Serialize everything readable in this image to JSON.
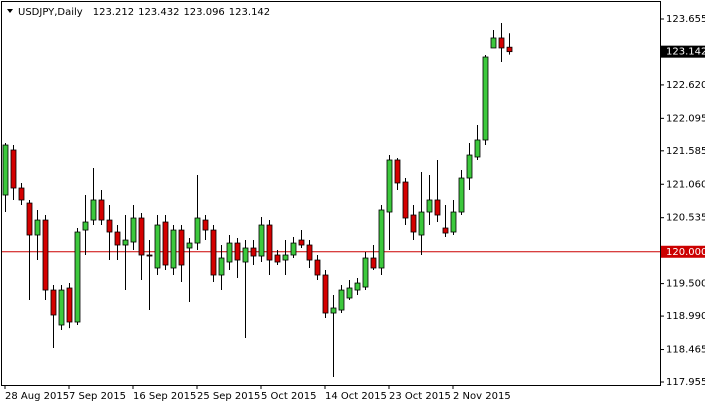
{
  "chart_data": {
    "type": "candlestick",
    "title": "USDJPY,Daily",
    "categories": [
      "28 Aug 2015",
      null,
      null,
      null,
      null,
      null,
      null,
      null,
      "7 Sep 2015",
      null,
      null,
      null,
      null,
      null,
      null,
      null,
      "16 Sep 2015",
      null,
      null,
      null,
      null,
      null,
      null,
      null,
      "25 Sep 2015",
      null,
      null,
      null,
      null,
      null,
      null,
      null,
      "5 Oct 2015",
      null,
      null,
      null,
      null,
      null,
      null,
      null,
      "14 Oct 2015",
      null,
      null,
      null,
      null,
      null,
      null,
      null,
      "23 Oct 2015",
      null,
      null,
      null,
      null,
      null,
      null,
      null,
      "2 Nov 2015",
      null,
      null,
      null,
      null,
      null,
      null,
      null
    ],
    "series": {
      "open": [
        120.891,
        121.598,
        121.001,
        120.765,
        120.263,
        120.498,
        119.399,
        118.85,
        119.431,
        118.897,
        120.341,
        120.498,
        120.813,
        120.498,
        120.31,
        120.106,
        120.153,
        120.53,
        119.949,
        119.745,
        120.467,
        119.745,
        120.341,
        120.059,
        120.137,
        120.498,
        120.341,
        119.635,
        119.839,
        120.137,
        119.839,
        120.059,
        119.933,
        120.42,
        119.949,
        119.87,
        119.949,
        120.184,
        120.106,
        119.87,
        119.635,
        119.038,
        119.085,
        119.274,
        119.399,
        119.446,
        119.902,
        119.745,
        120.624,
        121.441,
        121.095,
        120.577,
        120.263,
        120.624,
        120.813,
        120.373,
        120.31,
        120.624,
        121.158,
        121.488,
        121.755,
        123.2,
        123.357,
        123.212
      ],
      "high": [
        121.708,
        121.676,
        121.08,
        120.813,
        120.656,
        120.577,
        119.478,
        119.478,
        119.509,
        120.373,
        120.891,
        121.315,
        120.97,
        120.734,
        120.42,
        120.577,
        120.734,
        120.608,
        120.184,
        120.577,
        120.577,
        120.42,
        120.42,
        120.216,
        121.205,
        120.577,
        120.42,
        120.106,
        120.263,
        120.216,
        120.184,
        120.184,
        120.546,
        120.498,
        120.027,
        120.184,
        120.232,
        120.341,
        120.184,
        119.949,
        119.713,
        119.321,
        119.478,
        119.556,
        119.588,
        119.996,
        120.106,
        120.734,
        121.519,
        121.472,
        121.158,
        120.734,
        121.252,
        121.205,
        121.441,
        120.734,
        120.813,
        121.284,
        121.708,
        121.99,
        123.09,
        123.482,
        123.592,
        123.432
      ],
      "low": [
        120.624,
        120.813,
        120.734,
        119.242,
        119.87,
        119.242,
        118.488,
        118.771,
        118.802,
        118.85,
        119.949,
        120.42,
        120.42,
        119.87,
        119.87,
        119.399,
        120.027,
        119.556,
        119.085,
        119.635,
        119.713,
        119.635,
        119.525,
        119.211,
        120.027,
        120.184,
        119.525,
        119.399,
        119.713,
        119.588,
        118.645,
        119.792,
        119.839,
        119.635,
        119.792,
        119.635,
        119.902,
        120.059,
        119.745,
        119.556,
        118.96,
        118.033,
        119.038,
        119.242,
        119.321,
        119.399,
        119.713,
        119.635,
        120.027,
        120.97,
        120.42,
        120.184,
        119.949,
        120.42,
        120.467,
        120.232,
        120.263,
        120.577,
        120.97,
        121.441,
        121.676,
        123.2,
        122.98,
        123.096
      ],
      "close": [
        121.676,
        121.001,
        120.813,
        120.263,
        120.498,
        119.399,
        119.007,
        119.399,
        118.897,
        120.31,
        120.467,
        120.813,
        120.498,
        120.31,
        120.106,
        120.184,
        120.53,
        119.949,
        119.933,
        120.42,
        119.792,
        120.341,
        119.792,
        120.137,
        120.53,
        120.341,
        119.635,
        119.902,
        120.137,
        119.87,
        120.059,
        119.933,
        120.42,
        119.87,
        119.839,
        119.949,
        120.137,
        120.106,
        119.87,
        119.635,
        119.038,
        119.117,
        119.399,
        119.431,
        119.509,
        119.902,
        119.745,
        120.656,
        121.441,
        121.08,
        120.53,
        120.31,
        120.624,
        120.813,
        120.577,
        120.294,
        120.624,
        121.158,
        121.519,
        121.755,
        123.058,
        123.357,
        123.2,
        123.142
      ]
    },
    "up_color": "#3cc83c",
    "down_color": "#d40000",
    "ylim": [
      117.908,
      123.906
    ],
    "yticks": [
      123.655,
      {
        "value": 122.62,
        "label": "122.620"
      },
      122.095,
      121.585,
      {
        "value": 121.06,
        "label": "121.060"
      },
      120.535,
      {
        "value": 119.5,
        "label": "119.500"
      },
      {
        "value": 118.99,
        "label": "118.990"
      },
      118.465,
      117.955
    ],
    "hline": {
      "value": 120,
      "label": "120.000",
      "color": "#cc0000"
    },
    "grid": false
  }
}
